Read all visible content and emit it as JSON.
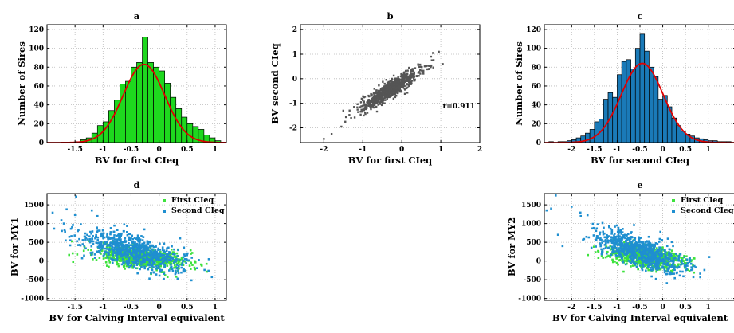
{
  "figure": {
    "background": "#ffffff"
  },
  "chart_data": [
    {
      "id": "a",
      "type": "bar",
      "title": "a",
      "xlabel": "BV for first CIeq",
      "ylabel": "Number of Sires",
      "xlim": [
        -2.0,
        1.2
      ],
      "ylim": [
        0,
        125
      ],
      "xticks": [
        -1.5,
        -1,
        -0.5,
        0,
        0.5,
        1
      ],
      "xtick_labels": [
        "-1.5",
        "-1",
        "-0.5",
        "0",
        "0.5",
        "1"
      ],
      "yticks": [
        0,
        20,
        40,
        60,
        80,
        100,
        120
      ],
      "bar_color": "#1ed81e",
      "bin_width": 0.1,
      "bin_starts": [
        -1.5,
        -1.4,
        -1.3,
        -1.2,
        -1.1,
        -1.0,
        -0.9,
        -0.8,
        -0.7,
        -0.6,
        -0.5,
        -0.4,
        -0.3,
        -0.2,
        -0.1,
        0.0,
        0.1,
        0.2,
        0.3,
        0.4,
        0.5,
        0.6,
        0.7,
        0.8,
        0.9,
        1.0
      ],
      "values": [
        1,
        3,
        5,
        10,
        18,
        22,
        34,
        45,
        62,
        65,
        80,
        85,
        112,
        85,
        80,
        76,
        63,
        48,
        36,
        27,
        20,
        17,
        14,
        8,
        5,
        2
      ],
      "fit_curve": {
        "color": "#e00000",
        "mean": -0.27,
        "sd": 0.37,
        "peak": 83
      },
      "grid": true
    },
    {
      "id": "b",
      "type": "scatter",
      "title": "b",
      "xlabel": "BV for first CIeq",
      "ylabel": "BV  second CIeq",
      "xlim": [
        -2.6,
        2.0
      ],
      "ylim": [
        -2.6,
        2.2
      ],
      "xticks": [
        -2,
        -1,
        0,
        1,
        2
      ],
      "yticks": [
        -2,
        -1,
        0,
        1,
        2
      ],
      "point_color": "#555555",
      "annotation": "r=0.911",
      "cloud": {
        "n": 900,
        "x_mean": -0.27,
        "x_sd": 0.36,
        "slope": 1.0,
        "intercept": -0.15,
        "noise_sd": 0.16
      },
      "outliers": [
        [
          -2.0,
          -2.45
        ],
        [
          -1.8,
          -2.25
        ],
        [
          -1.55,
          -1.95
        ],
        [
          -1.45,
          -1.75
        ],
        [
          -1.5,
          -1.3
        ],
        [
          -1.3,
          -1.6
        ],
        [
          0.8,
          1.05
        ],
        [
          0.95,
          1.1
        ],
        [
          1.05,
          0.6
        ],
        [
          0.75,
          0.9
        ]
      ],
      "grid": true
    },
    {
      "id": "c",
      "type": "bar",
      "title": "c",
      "xlabel": "BV for second CIeq",
      "ylabel": "Number of Sires",
      "xlim": [
        -2.6,
        1.6
      ],
      "ylim": [
        0,
        125
      ],
      "xticks": [
        -2,
        -1.5,
        -1,
        -0.5,
        0,
        0.5,
        1
      ],
      "xtick_labels": [
        "-2",
        "-1.5",
        "-1",
        "-0.5",
        "0",
        "0.5",
        "1"
      ],
      "yticks": [
        0,
        20,
        40,
        60,
        80,
        100,
        120
      ],
      "bar_color": "#1a7ab8",
      "bin_width": 0.1,
      "bin_starts": [
        -2.5,
        -2.4,
        -2.3,
        -2.2,
        -2.1,
        -2.0,
        -1.9,
        -1.8,
        -1.7,
        -1.6,
        -1.5,
        -1.4,
        -1.3,
        -1.2,
        -1.1,
        -1.0,
        -0.9,
        -0.8,
        -0.7,
        -0.6,
        -0.5,
        -0.4,
        -0.3,
        -0.2,
        -0.1,
        0.0,
        0.1,
        0.2,
        0.3,
        0.4,
        0.5,
        0.6,
        0.7,
        0.8,
        0.9,
        1.0,
        1.1,
        1.2,
        1.3,
        1.4
      ],
      "values": [
        1,
        0,
        1,
        1,
        2,
        3,
        5,
        7,
        10,
        14,
        22,
        25,
        46,
        53,
        48,
        72,
        86,
        88,
        78,
        100,
        115,
        97,
        80,
        70,
        46,
        50,
        38,
        26,
        18,
        12,
        9,
        7,
        5,
        4,
        3,
        2,
        2,
        1,
        1,
        1
      ],
      "fit_curve": {
        "color": "#e00000",
        "mean": -0.45,
        "sd": 0.46,
        "peak": 84
      },
      "grid": true
    },
    {
      "id": "d",
      "type": "scatter",
      "title": "d",
      "xlabel": "BV for Calving Interval equivalent",
      "ylabel": "BV for MY1",
      "xlim": [
        -2.0,
        1.2
      ],
      "ylim": [
        -1050,
        1800
      ],
      "xticks": [
        -1.5,
        -1,
        -0.5,
        0,
        0.5,
        1
      ],
      "xtick_labels": [
        "-1.5",
        "-1",
        "-0.5",
        "0",
        "0.5",
        "1"
      ],
      "yticks": [
        -1000,
        -500,
        0,
        500,
        1000,
        1500
      ],
      "legend_position": "top-right",
      "series": [
        {
          "name": "First CIeq",
          "color": "#3de23d",
          "cloud": {
            "n": 700,
            "x_mean": -0.3,
            "x_sd": 0.4,
            "y_mean": 100,
            "slope": -150,
            "y_sd": 130
          }
        },
        {
          "name": "Second CIeq",
          "color": "#1f8fd0",
          "cloud": {
            "n": 800,
            "x_mean": -0.45,
            "x_sd": 0.45,
            "y_mean": 260,
            "slope": -380,
            "y_sd": 210
          }
        }
      ],
      "outliers": [
        [
          -1.48,
          1720
        ],
        [
          -1.5,
          1230
        ],
        [
          -1.65,
          1380
        ],
        [
          -1.7,
          1000
        ],
        [
          -1.9,
          1290
        ],
        [
          -1.45,
          800
        ],
        [
          -1.2,
          1350
        ],
        [
          -1.1,
          1200
        ]
      ],
      "grid": true
    },
    {
      "id": "e",
      "type": "scatter",
      "title": "e",
      "xlabel": "BV for Calving Interval equivalent",
      "ylabel": "BV for MY2",
      "xlim": [
        -2.6,
        1.6
      ],
      "ylim": [
        -1050,
        1800
      ],
      "xticks": [
        -2,
        -1.5,
        -1,
        -0.5,
        0,
        0.5,
        1
      ],
      "xtick_labels": [
        "-2",
        "-1.5",
        "-1",
        "-0.5",
        "0",
        "0.5",
        "1"
      ],
      "yticks": [
        -1000,
        -500,
        0,
        500,
        1000,
        1500
      ],
      "legend_position": "top-right",
      "series": [
        {
          "name": "First CIeq",
          "color": "#3de23d",
          "cloud": {
            "n": 700,
            "x_mean": -0.35,
            "x_sd": 0.42,
            "y_mean": 120,
            "slope": -160,
            "y_sd": 140
          }
        },
        {
          "name": "Second CIeq",
          "color": "#1f8fd0",
          "cloud": {
            "n": 800,
            "x_mean": -0.5,
            "x_sd": 0.5,
            "y_mean": 260,
            "slope": -420,
            "y_sd": 200
          }
        }
      ],
      "outliers": [
        [
          -2.35,
          1750
        ],
        [
          -2.45,
          1400
        ],
        [
          -2.55,
          1350
        ],
        [
          -2.0,
          1450
        ],
        [
          -1.8,
          1200
        ],
        [
          -2.3,
          700
        ],
        [
          -2.2,
          400
        ]
      ],
      "grid": true
    }
  ]
}
